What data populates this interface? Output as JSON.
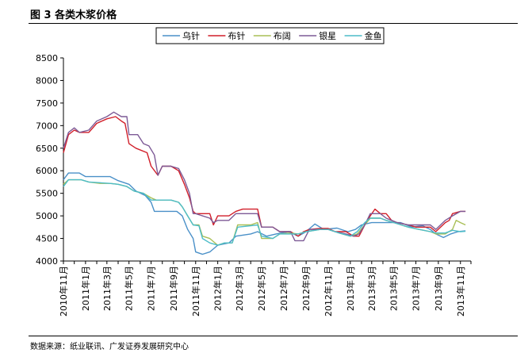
{
  "figure_title": "图 3 各类木浆价格",
  "source": "数据来源：纸业联讯、广发证券发展研究中心",
  "chart_data": {
    "type": "line",
    "title": "",
    "xlabel": "",
    "ylabel": "",
    "ylim": [
      4000,
      8500
    ],
    "yticks": [
      4000,
      4500,
      5000,
      5500,
      6000,
      6500,
      7000,
      7500,
      8000,
      8500
    ],
    "xlim": [
      "2010-11-01",
      "2013-11-30"
    ],
    "xticks": [
      "2010年11月",
      "2011年1月",
      "2011年3月",
      "2011年5月",
      "2011年7月",
      "2011年9月",
      "2011年11月",
      "2012年1月",
      "2012年3月",
      "2012年5月",
      "2012年7月",
      "2012年9月",
      "2012年11月",
      "2013年1月",
      "2013年3月",
      "2013年5月",
      "2013年7月",
      "2013年9月",
      "2013年11月"
    ],
    "grid": false,
    "legend_position": "top",
    "series": [
      {
        "name": "乌针",
        "color": "#4a90c8",
        "points": [
          [
            "2010-11-01",
            5800
          ],
          [
            "2010-11-15",
            5950
          ],
          [
            "2010-12-15",
            5950
          ],
          [
            "2011-01-01",
            5870
          ],
          [
            "2011-03-10",
            5870
          ],
          [
            "2011-04-01",
            5780
          ],
          [
            "2011-05-01",
            5700
          ],
          [
            "2011-05-20",
            5550
          ],
          [
            "2011-06-15",
            5450
          ],
          [
            "2011-07-01",
            5300
          ],
          [
            "2011-07-10",
            5100
          ],
          [
            "2011-09-10",
            5100
          ],
          [
            "2011-09-25",
            5000
          ],
          [
            "2011-10-10",
            4700
          ],
          [
            "2011-10-25",
            4500
          ],
          [
            "2011-11-01",
            4200
          ],
          [
            "2011-11-20",
            4150
          ],
          [
            "2011-12-10",
            4200
          ],
          [
            "2012-01-01",
            4350
          ],
          [
            "2012-02-01",
            4400
          ],
          [
            "2012-02-20",
            4550
          ],
          [
            "2012-04-01",
            4600
          ],
          [
            "2012-04-20",
            4650
          ],
          [
            "2012-05-15",
            4550
          ],
          [
            "2012-06-10",
            4600
          ],
          [
            "2012-07-15",
            4650
          ],
          [
            "2012-08-10",
            4550
          ],
          [
            "2012-09-01",
            4650
          ],
          [
            "2012-09-25",
            4820
          ],
          [
            "2012-10-20",
            4700
          ],
          [
            "2012-11-25",
            4730
          ],
          [
            "2012-12-25",
            4650
          ],
          [
            "2013-01-15",
            4700
          ],
          [
            "2013-02-01",
            4800
          ],
          [
            "2013-03-01",
            4850
          ],
          [
            "2013-04-01",
            4850
          ],
          [
            "2013-05-20",
            4850
          ],
          [
            "2013-06-20",
            4750
          ],
          [
            "2013-07-20",
            4780
          ],
          [
            "2013-08-10",
            4700
          ],
          [
            "2013-08-25",
            4600
          ],
          [
            "2013-09-15",
            4520
          ],
          [
            "2013-10-05",
            4600
          ],
          [
            "2013-10-25",
            4650
          ],
          [
            "2013-11-15",
            4670
          ]
        ]
      },
      {
        "name": "布针",
        "color": "#d11f2a",
        "points": [
          [
            "2010-11-01",
            6400
          ],
          [
            "2010-11-15",
            6800
          ],
          [
            "2010-12-01",
            6900
          ],
          [
            "2010-12-15",
            6850
          ],
          [
            "2011-01-10",
            6850
          ],
          [
            "2011-02-01",
            7050
          ],
          [
            "2011-03-01",
            7150
          ],
          [
            "2011-03-25",
            7200
          ],
          [
            "2011-04-10",
            7100
          ],
          [
            "2011-04-20",
            7050
          ],
          [
            "2011-05-01",
            6600
          ],
          [
            "2011-05-20",
            6500
          ],
          [
            "2011-06-20",
            6400
          ],
          [
            "2011-07-01",
            6100
          ],
          [
            "2011-07-20",
            5900
          ],
          [
            "2011-08-01",
            6100
          ],
          [
            "2011-08-25",
            6100
          ],
          [
            "2011-09-15",
            6000
          ],
          [
            "2011-10-01",
            5700
          ],
          [
            "2011-10-15",
            5400
          ],
          [
            "2011-10-25",
            5100
          ],
          [
            "2011-11-01",
            5050
          ],
          [
            "2011-12-10",
            5050
          ],
          [
            "2011-12-20",
            4800
          ],
          [
            "2012-01-01",
            5000
          ],
          [
            "2012-02-01",
            5000
          ],
          [
            "2012-02-20",
            5100
          ],
          [
            "2012-03-10",
            5150
          ],
          [
            "2012-04-01",
            5150
          ],
          [
            "2012-04-20",
            5150
          ],
          [
            "2012-05-01",
            4750
          ],
          [
            "2012-06-01",
            4750
          ],
          [
            "2012-06-20",
            4650
          ],
          [
            "2012-07-20",
            4650
          ],
          [
            "2012-08-10",
            4550
          ],
          [
            "2012-08-25",
            4650
          ],
          [
            "2012-09-10",
            4700
          ],
          [
            "2012-10-10",
            4720
          ],
          [
            "2012-11-01",
            4720
          ],
          [
            "2012-11-20",
            4650
          ],
          [
            "2012-12-20",
            4650
          ],
          [
            "2013-01-10",
            4550
          ],
          [
            "2013-01-25",
            4550
          ],
          [
            "2013-02-10",
            4800
          ],
          [
            "2013-02-25",
            5000
          ],
          [
            "2013-03-10",
            5150
          ],
          [
            "2013-03-25",
            5050
          ],
          [
            "2013-04-10",
            5050
          ],
          [
            "2013-04-25",
            4900
          ],
          [
            "2013-05-10",
            4850
          ],
          [
            "2013-06-10",
            4800
          ],
          [
            "2013-07-01",
            4750
          ],
          [
            "2013-08-10",
            4750
          ],
          [
            "2013-08-25",
            4650
          ],
          [
            "2013-09-20",
            4850
          ],
          [
            "2013-10-01",
            4900
          ],
          [
            "2013-10-10",
            5050
          ],
          [
            "2013-11-01",
            5100
          ],
          [
            "2013-11-15",
            5100
          ]
        ]
      },
      {
        "name": "布阔",
        "color": "#a9bf56",
        "points": [
          [
            "2010-11-01",
            5700
          ],
          [
            "2010-11-15",
            5800
          ],
          [
            "2010-12-20",
            5800
          ],
          [
            "2011-01-10",
            5750
          ],
          [
            "2011-02-10",
            5720
          ],
          [
            "2011-03-10",
            5720
          ],
          [
            "2011-04-01",
            5700
          ],
          [
            "2011-04-25",
            5650
          ],
          [
            "2011-05-15",
            5550
          ],
          [
            "2011-06-10",
            5500
          ],
          [
            "2011-07-01",
            5400
          ],
          [
            "2011-07-15",
            5350
          ],
          [
            "2011-08-25",
            5350
          ],
          [
            "2011-09-15",
            5300
          ],
          [
            "2011-09-25",
            5200
          ],
          [
            "2011-10-10",
            5000
          ],
          [
            "2011-10-25",
            4800
          ],
          [
            "2011-11-10",
            4800
          ],
          [
            "2011-11-20",
            4550
          ],
          [
            "2011-12-10",
            4500
          ],
          [
            "2012-01-01",
            4350
          ],
          [
            "2012-01-20",
            4400
          ],
          [
            "2012-02-10",
            4400
          ],
          [
            "2012-02-25",
            4800
          ],
          [
            "2012-04-01",
            4800
          ],
          [
            "2012-04-20",
            4850
          ],
          [
            "2012-05-01",
            4500
          ],
          [
            "2012-06-01",
            4500
          ],
          [
            "2012-06-20",
            4600
          ],
          [
            "2012-07-20",
            4620
          ],
          [
            "2012-08-10",
            4600
          ],
          [
            "2012-09-01",
            4650
          ],
          [
            "2012-10-10",
            4700
          ],
          [
            "2012-11-01",
            4700
          ],
          [
            "2012-12-01",
            4620
          ],
          [
            "2013-01-01",
            4550
          ],
          [
            "2013-01-20",
            4600
          ],
          [
            "2013-02-10",
            4800
          ],
          [
            "2013-02-25",
            4950
          ],
          [
            "2013-03-25",
            4950
          ],
          [
            "2013-04-10",
            4900
          ],
          [
            "2013-05-01",
            4850
          ],
          [
            "2013-06-10",
            4750
          ],
          [
            "2013-07-10",
            4700
          ],
          [
            "2013-08-10",
            4650
          ],
          [
            "2013-08-25",
            4600
          ],
          [
            "2013-09-20",
            4600
          ],
          [
            "2013-10-10",
            4700
          ],
          [
            "2013-10-20",
            4900
          ],
          [
            "2013-11-01",
            4850
          ],
          [
            "2013-11-15",
            4800
          ]
        ]
      },
      {
        "name": "银星",
        "color": "#7d5a96",
        "points": [
          [
            "2010-11-01",
            6500
          ],
          [
            "2010-11-15",
            6850
          ],
          [
            "2010-12-01",
            6950
          ],
          [
            "2010-12-15",
            6850
          ],
          [
            "2011-01-10",
            6900
          ],
          [
            "2011-02-01",
            7100
          ],
          [
            "2011-03-01",
            7200
          ],
          [
            "2011-03-20",
            7300
          ],
          [
            "2011-04-10",
            7200
          ],
          [
            "2011-04-25",
            7200
          ],
          [
            "2011-05-01",
            6800
          ],
          [
            "2011-05-25",
            6800
          ],
          [
            "2011-06-10",
            6600
          ],
          [
            "2011-06-25",
            6550
          ],
          [
            "2011-07-10",
            6350
          ],
          [
            "2011-07-20",
            5900
          ],
          [
            "2011-08-01",
            6100
          ],
          [
            "2011-08-25",
            6100
          ],
          [
            "2011-09-15",
            6050
          ],
          [
            "2011-10-01",
            5800
          ],
          [
            "2011-10-15",
            5500
          ],
          [
            "2011-10-25",
            5050
          ],
          [
            "2011-11-01",
            5050
          ],
          [
            "2011-12-10",
            4950
          ],
          [
            "2011-12-20",
            4850
          ],
          [
            "2012-01-01",
            4900
          ],
          [
            "2012-02-01",
            4900
          ],
          [
            "2012-02-20",
            5050
          ],
          [
            "2012-03-10",
            5050
          ],
          [
            "2012-04-20",
            5050
          ],
          [
            "2012-05-01",
            4750
          ],
          [
            "2012-06-01",
            4750
          ],
          [
            "2012-06-20",
            4650
          ],
          [
            "2012-07-20",
            4650
          ],
          [
            "2012-08-01",
            4450
          ],
          [
            "2012-08-25",
            4450
          ],
          [
            "2012-09-10",
            4700
          ],
          [
            "2012-10-10",
            4700
          ],
          [
            "2012-11-01",
            4700
          ],
          [
            "2012-11-20",
            4650
          ],
          [
            "2012-12-20",
            4600
          ],
          [
            "2013-01-10",
            4550
          ],
          [
            "2013-01-25",
            4600
          ],
          [
            "2013-02-10",
            4800
          ],
          [
            "2013-02-25",
            5050
          ],
          [
            "2013-03-25",
            5050
          ],
          [
            "2013-04-10",
            4950
          ],
          [
            "2013-04-25",
            4900
          ],
          [
            "2013-05-10",
            4850
          ],
          [
            "2013-06-10",
            4800
          ],
          [
            "2013-07-01",
            4800
          ],
          [
            "2013-08-10",
            4800
          ],
          [
            "2013-08-25",
            4700
          ],
          [
            "2013-09-20",
            4900
          ],
          [
            "2013-10-10",
            5000
          ],
          [
            "2013-11-01",
            5100
          ],
          [
            "2013-11-15",
            5100
          ]
        ]
      },
      {
        "name": "金鱼",
        "color": "#4cbcc8",
        "points": [
          [
            "2010-11-01",
            5650
          ],
          [
            "2010-11-15",
            5800
          ],
          [
            "2010-12-20",
            5800
          ],
          [
            "2011-01-10",
            5750
          ],
          [
            "2011-03-10",
            5720
          ],
          [
            "2011-04-01",
            5700
          ],
          [
            "2011-04-25",
            5650
          ],
          [
            "2011-05-15",
            5550
          ],
          [
            "2011-06-10",
            5500
          ],
          [
            "2011-07-01",
            5350
          ],
          [
            "2011-08-25",
            5350
          ],
          [
            "2011-09-15",
            5300
          ],
          [
            "2011-09-25",
            5200
          ],
          [
            "2011-10-10",
            5000
          ],
          [
            "2011-10-25",
            4800
          ],
          [
            "2011-11-10",
            4780
          ],
          [
            "2011-11-20",
            4500
          ],
          [
            "2011-12-10",
            4400
          ],
          [
            "2012-01-01",
            4350
          ],
          [
            "2012-01-20",
            4400
          ],
          [
            "2012-02-10",
            4400
          ],
          [
            "2012-02-25",
            4750
          ],
          [
            "2012-04-01",
            4780
          ],
          [
            "2012-04-20",
            4800
          ],
          [
            "2012-05-01",
            4550
          ],
          [
            "2012-06-01",
            4500
          ],
          [
            "2012-06-20",
            4600
          ],
          [
            "2012-07-20",
            4600
          ],
          [
            "2012-08-10",
            4600
          ],
          [
            "2012-09-01",
            4650
          ],
          [
            "2012-10-10",
            4700
          ],
          [
            "2012-11-01",
            4700
          ],
          [
            "2012-12-01",
            4620
          ],
          [
            "2013-01-01",
            4550
          ],
          [
            "2013-01-20",
            4650
          ],
          [
            "2013-02-10",
            4850
          ],
          [
            "2013-02-25",
            4950
          ],
          [
            "2013-03-25",
            4950
          ],
          [
            "2013-04-10",
            4900
          ],
          [
            "2013-05-01",
            4850
          ],
          [
            "2013-06-10",
            4750
          ],
          [
            "2013-07-10",
            4700
          ],
          [
            "2013-08-10",
            4650
          ],
          [
            "2013-08-25",
            4620
          ],
          [
            "2013-09-20",
            4620
          ],
          [
            "2013-10-10",
            4680
          ],
          [
            "2013-11-01",
            4650
          ],
          [
            "2013-11-15",
            4660
          ]
        ]
      }
    ]
  }
}
